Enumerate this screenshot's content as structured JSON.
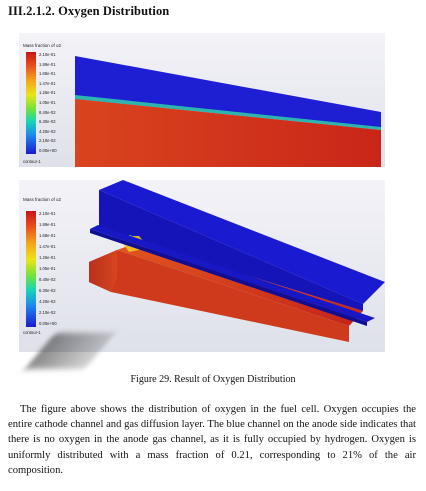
{
  "section": {
    "heading": "III.2.1.2. Oxygen Distribution"
  },
  "figure_top": {
    "legend": {
      "title": "Mass fraction of o2",
      "ticks": [
        "2.10e-01",
        "1.89e-01",
        "1.68e-01",
        "1.47e-01",
        "1.26e-01",
        "1.05e-01",
        "8.40e-02",
        "6.30e-02",
        "4.20e-02",
        "2.10e-02",
        "0.00e+00"
      ],
      "footer": "contour-1"
    }
  },
  "figure_bottom": {
    "legend": {
      "title": "Mass fraction of o2",
      "ticks": [
        "2.10e-01",
        "1.89e-01",
        "1.68e-01",
        "1.47e-01",
        "1.26e-01",
        "1.05e-01",
        "8.40e-02",
        "6.30e-02",
        "4.20e-02",
        "2.10e-02",
        "0.00e+00"
      ],
      "footer": "contour-1"
    }
  },
  "caption": "Figure 29. Result of Oxygen Distribution",
  "paragraph": "The figure above shows the distribution of oxygen in the fuel cell. Oxygen occupies the entire cathode channel and gas diffusion layer. The blue channel on the anode side indicates that there is no oxygen in the anode gas channel, as it is fully occupied by hydrogen. Oxygen is uniformly distributed with a mass fraction of 0.21, corresponding to 21% of the air composition.",
  "colors": {
    "high": "#c8141a",
    "low": "#1b1bc9",
    "background": "#e7e8ef"
  }
}
